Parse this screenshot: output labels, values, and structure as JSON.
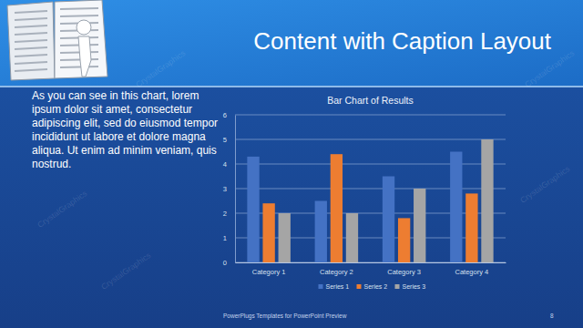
{
  "slide": {
    "title": "Content with Caption Layout",
    "caption": "As you can see in this chart, lorem ipsum dolor sit amet, consectetur adipiscing elit, sed do eiusmod tempor incididunt ut labore et dolore magna aliqua. Ut enim ad minim veniam, quis nostrud.",
    "footer": "PowerPlugs Templates for PowerPoint Preview",
    "page": 8,
    "watermark": "CrystalGraphics"
  },
  "chart_data": {
    "type": "bar",
    "title": "Bar Chart of Results",
    "categories": [
      "Category 1",
      "Category 2",
      "Category 3",
      "Category 4"
    ],
    "series": [
      {
        "name": "Series 1",
        "color": "#4472c4",
        "values": [
          4.3,
          2.5,
          3.5,
          4.5
        ]
      },
      {
        "name": "Series 2",
        "color": "#ed7d31",
        "values": [
          2.4,
          4.4,
          1.8,
          2.8
        ]
      },
      {
        "name": "Series 3",
        "color": "#a5a5a5",
        "values": [
          2,
          2,
          3,
          5
        ]
      }
    ],
    "ylim": [
      0,
      6
    ],
    "yticks": [
      0,
      1,
      2,
      3,
      4,
      5,
      6
    ],
    "grid": true,
    "legend": "bottom"
  }
}
